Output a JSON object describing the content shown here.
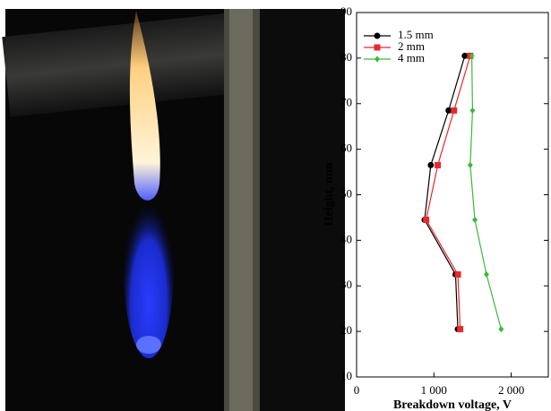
{
  "chart_data": {
    "type": "line",
    "orientation": "horizontal",
    "x_label": "Breakdown voltage, V",
    "y_label": "Height, mm",
    "y": [
      20.5,
      32.5,
      44.5,
      56.5,
      68.5,
      80.5
    ],
    "series": [
      {
        "name": "1.5 mm",
        "color": "#000000",
        "marker": "circle",
        "values": [
          1310,
          1280,
          880,
          960,
          1190,
          1400
        ]
      },
      {
        "name": "2 mm",
        "color": "#e8282c",
        "marker": "square",
        "values": [
          1340,
          1310,
          900,
          1050,
          1260,
          1470
        ]
      },
      {
        "name": "4 mm",
        "color": "#3cb83c",
        "marker": "diamond",
        "values": [
          1870,
          1680,
          1530,
          1470,
          1500,
          1490
        ]
      }
    ],
    "xlim": [
      0,
      2480
    ],
    "xticks": [
      0,
      {
        "value": 1000,
        "label": "1 000"
      },
      {
        "value": 2000,
        "label": "2 000"
      }
    ],
    "ylim": [
      10,
      90
    ],
    "yticks": [
      10,
      20,
      30,
      40,
      50,
      60,
      70,
      80,
      90
    ],
    "grid": false,
    "legend": "upper left"
  }
}
